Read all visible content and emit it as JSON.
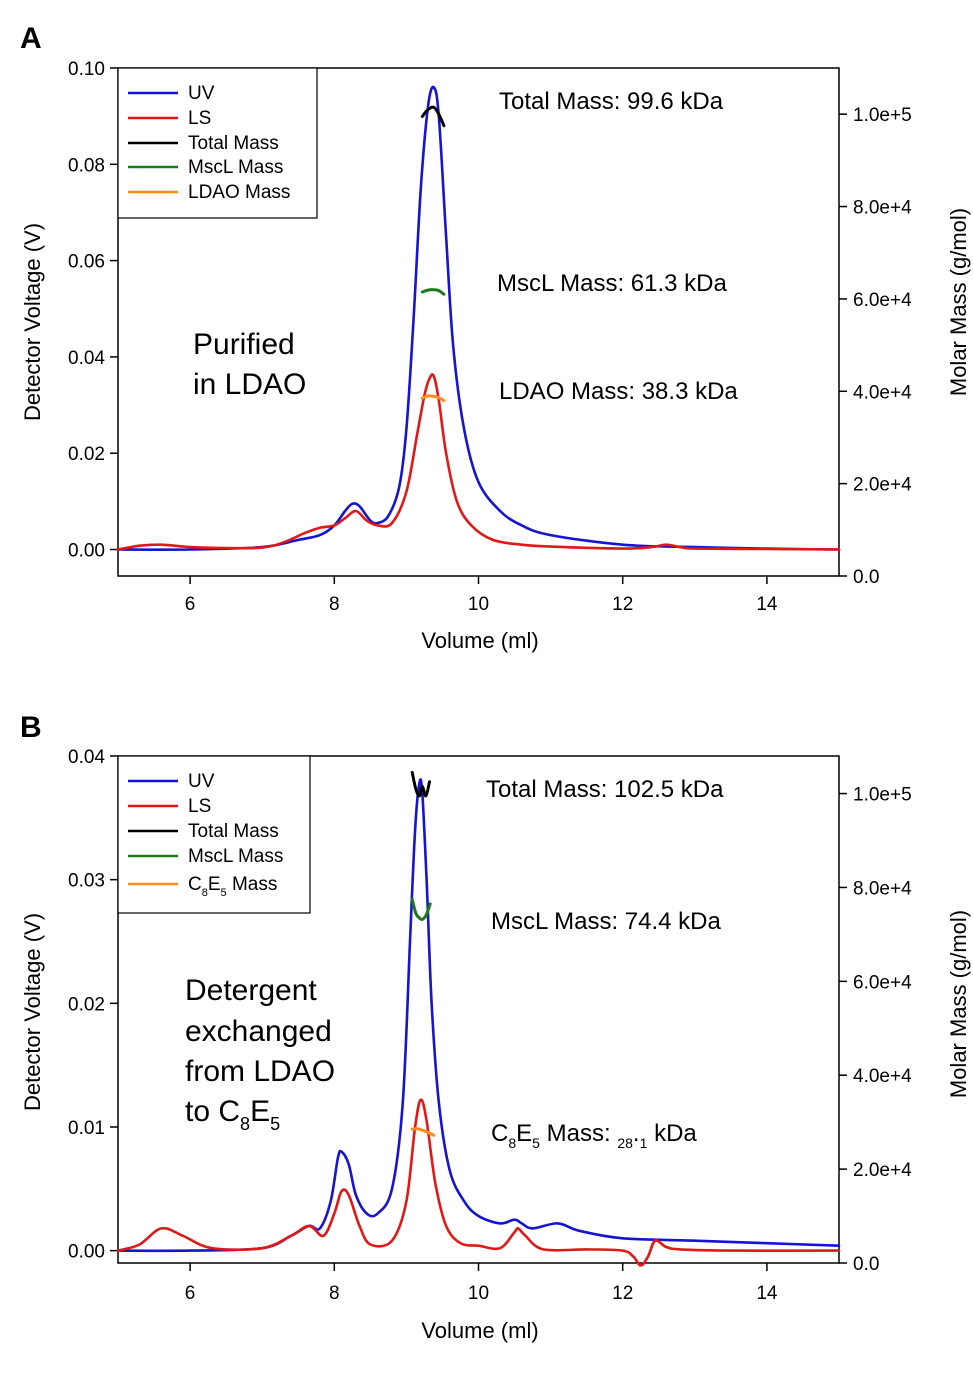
{
  "chart_data": [
    {
      "panel": "A",
      "type": "line",
      "xlabel": "Volume (ml)",
      "ylabel_left": "Detector Voltage (V)",
      "ylabel_right": "Molar Mass (g/mol)",
      "xlim": [
        5,
        15
      ],
      "ylim_left": [
        -0.0055,
        0.1
      ],
      "ylim_right": [
        0,
        110000
      ],
      "x_ticks": [
        "6",
        "8",
        "10",
        "12",
        "14"
      ],
      "y_ticks_left": [
        "0.00",
        "0.02",
        "0.04",
        "0.06",
        "0.08",
        "0.10"
      ],
      "y_ticks_right": [
        "0.0",
        "2.0e+4",
        "4.0e+4",
        "6.0e+4",
        "8.0e+4",
        "1.0e+5"
      ],
      "legend": [
        {
          "label": "UV",
          "color": "#1414d2"
        },
        {
          "label": "LS",
          "color": "#e01818"
        },
        {
          "label": "Total Mass",
          "color": "#000000"
        },
        {
          "label": "MscL Mass",
          "color": "#1a7a1a"
        },
        {
          "label": "LDAO Mass",
          "color": "#ff8c1a"
        }
      ],
      "body_text": [
        "Purified",
        "in LDAO"
      ],
      "annotations": [
        "Total Mass: 99.6 kDa",
        "MscL Mass: 61.3 kDa",
        "LDAO Mass: 38.3 kDa"
      ],
      "series": [
        {
          "name": "UV",
          "axis": "left",
          "color": "#1414d2",
          "x": [
            5.0,
            6.0,
            7.0,
            7.5,
            7.8,
            8.0,
            8.15,
            8.25,
            8.35,
            8.5,
            8.6,
            8.75,
            8.9,
            9.0,
            9.1,
            9.2,
            9.3,
            9.38,
            9.45,
            9.55,
            9.65,
            9.8,
            10.0,
            10.3,
            10.6,
            11.0,
            12.0,
            13.0,
            14.0,
            15.0
          ],
          "y": [
            0.0,
            0.0,
            0.0005,
            0.002,
            0.003,
            0.005,
            0.008,
            0.0095,
            0.009,
            0.006,
            0.0055,
            0.007,
            0.013,
            0.025,
            0.048,
            0.075,
            0.092,
            0.096,
            0.09,
            0.065,
            0.042,
            0.025,
            0.014,
            0.008,
            0.005,
            0.003,
            0.001,
            0.0005,
            0.0002,
            0.0
          ]
        },
        {
          "name": "LS",
          "axis": "left",
          "color": "#e01818",
          "x": [
            5.0,
            5.3,
            5.6,
            6.0,
            6.5,
            7.0,
            7.3,
            7.6,
            7.8,
            8.0,
            8.15,
            8.3,
            8.45,
            8.6,
            8.8,
            9.0,
            9.15,
            9.25,
            9.32,
            9.38,
            9.45,
            9.55,
            9.7,
            9.9,
            10.2,
            10.6,
            11.0,
            12.0,
            12.4,
            12.6,
            12.8,
            13.0,
            14.0,
            15.0
          ],
          "y": [
            0.0,
            0.0008,
            0.001,
            0.0005,
            0.0003,
            0.0004,
            0.0015,
            0.0035,
            0.0045,
            0.005,
            0.0065,
            0.008,
            0.006,
            0.005,
            0.0055,
            0.012,
            0.024,
            0.032,
            0.0355,
            0.036,
            0.031,
            0.02,
            0.01,
            0.005,
            0.002,
            0.001,
            0.0006,
            0.0002,
            0.0005,
            0.001,
            0.0005,
            0.0002,
            0.0001,
            0.0
          ]
        },
        {
          "name": "Total Mass",
          "axis": "right",
          "color": "#000000",
          "x": [
            9.22,
            9.3,
            9.38,
            9.45,
            9.52
          ],
          "y": [
            99500,
            101000,
            101500,
            100000,
            97500
          ]
        },
        {
          "name": "MscL Mass",
          "axis": "right",
          "color": "#1a7a1a",
          "x": [
            9.22,
            9.3,
            9.38,
            9.45,
            9.52
          ],
          "y": [
            61500,
            61900,
            62000,
            61800,
            61000
          ]
        },
        {
          "name": "LDAO Mass",
          "axis": "right",
          "color": "#ff8c1a",
          "x": [
            9.22,
            9.3,
            9.38,
            9.45,
            9.52
          ],
          "y": [
            38500,
            39000,
            38900,
            38600,
            38000
          ]
        }
      ]
    },
    {
      "panel": "B",
      "type": "line",
      "xlabel": "Volume (ml)",
      "ylabel_left": "Detector Voltage (V)",
      "ylabel_right": "Molar Mass (g/mol)",
      "xlim": [
        5,
        15
      ],
      "ylim_left": [
        -0.001,
        0.04
      ],
      "ylim_right": [
        0,
        108000
      ],
      "x_ticks": [
        "6",
        "8",
        "10",
        "12",
        "14"
      ],
      "y_ticks_left": [
        "0.00",
        "0.01",
        "0.02",
        "0.03",
        "0.04"
      ],
      "y_ticks_right": [
        "0.0",
        "2.0e+4",
        "4.0e+4",
        "6.0e+4",
        "8.0e+4",
        "1.0e+5"
      ],
      "legend": [
        {
          "label": "UV",
          "color": "#1414d2"
        },
        {
          "label": "LS",
          "color": "#e01818"
        },
        {
          "label": "Total Mass",
          "color": "#000000"
        },
        {
          "label": "MscL Mass",
          "color": "#1a7a1a"
        },
        {
          "label": "C8E5 Mass",
          "color": "#ff8c1a"
        }
      ],
      "body_text": [
        "Detergent",
        "exchanged",
        "from LDAO",
        "to C8E5"
      ],
      "annotations": [
        "Total Mass: 102.5 kDa",
        "MscL Mass: 74.4 kDa",
        "C8E5 Mass: 28.1 kDa"
      ],
      "series": [
        {
          "name": "UV",
          "axis": "left",
          "color": "#1414d2",
          "x": [
            5.0,
            6.0,
            7.0,
            7.4,
            7.65,
            7.8,
            7.95,
            8.05,
            8.1,
            8.2,
            8.3,
            8.45,
            8.6,
            8.8,
            8.95,
            9.05,
            9.12,
            9.18,
            9.22,
            9.28,
            9.35,
            9.45,
            9.6,
            9.8,
            10.0,
            10.3,
            10.5,
            10.6,
            10.75,
            11.1,
            11.4,
            12.0,
            13.0,
            14.0,
            15.0
          ],
          "y": [
            0.0,
            0.0,
            0.0002,
            0.0012,
            0.002,
            0.0018,
            0.004,
            0.0075,
            0.008,
            0.007,
            0.0045,
            0.003,
            0.003,
            0.005,
            0.012,
            0.025,
            0.034,
            0.0378,
            0.037,
            0.03,
            0.02,
            0.012,
            0.0065,
            0.004,
            0.0028,
            0.0022,
            0.0025,
            0.0022,
            0.0018,
            0.0022,
            0.0016,
            0.001,
            0.0008,
            0.0006,
            0.0004
          ]
        },
        {
          "name": "LS",
          "axis": "left",
          "color": "#e01818",
          "x": [
            5.0,
            5.3,
            5.6,
            5.9,
            6.3,
            7.0,
            7.4,
            7.65,
            7.85,
            8.0,
            8.1,
            8.2,
            8.35,
            8.5,
            8.8,
            9.0,
            9.12,
            9.2,
            9.28,
            9.4,
            9.55,
            9.75,
            10.0,
            10.3,
            10.5,
            10.55,
            10.65,
            10.9,
            11.5,
            12.0,
            12.15,
            12.25,
            12.35,
            12.45,
            12.6,
            12.8,
            13.5,
            15.0
          ],
          "y": [
            0.0,
            0.0005,
            0.0018,
            0.0012,
            0.0002,
            0.0002,
            0.0012,
            0.002,
            0.0012,
            0.003,
            0.0048,
            0.0045,
            0.002,
            0.0005,
            0.0008,
            0.004,
            0.01,
            0.0122,
            0.0105,
            0.0055,
            0.002,
            0.0006,
            0.0004,
            0.0002,
            0.0015,
            0.0018,
            0.0012,
            0.0001,
            0.0001,
            0.0,
            -0.0005,
            -0.0012,
            -0.0005,
            0.0008,
            0.0003,
            0.0001,
            0.0,
            0.0
          ]
        },
        {
          "name": "Total Mass",
          "axis": "right",
          "color": "#000000",
          "x": [
            9.08,
            9.13,
            9.18,
            9.22,
            9.27,
            9.32
          ],
          "y": [
            104500,
            101000,
            99500,
            101500,
            99500,
            102500
          ]
        },
        {
          "name": "MscL Mass",
          "axis": "right",
          "color": "#1a7a1a",
          "x": [
            9.08,
            9.13,
            9.18,
            9.22,
            9.27,
            9.33
          ],
          "y": [
            77500,
            74500,
            73500,
            73200,
            74000,
            76500
          ]
        },
        {
          "name": "C8E5 Mass",
          "axis": "right",
          "color": "#ff8c1a",
          "x": [
            9.08,
            9.15,
            9.22,
            9.3,
            9.38
          ],
          "y": [
            28500,
            28600,
            28300,
            27800,
            27200
          ]
        }
      ]
    }
  ]
}
